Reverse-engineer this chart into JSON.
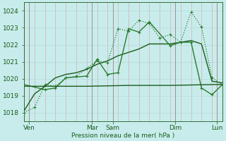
{
  "bg_color": "#c8ecec",
  "grid_color_minor_v": "#d4a0a0",
  "grid_color_major_v": "#a08080",
  "grid_color_h": "#b8d8d8",
  "line_color_dark": "#1a5c1a",
  "line_color_light": "#2d7a2d",
  "xlabel": "Pression niveau de la mer( hPa )",
  "ylim": [
    1017.5,
    1024.5
  ],
  "yticks": [
    1018,
    1019,
    1020,
    1021,
    1022,
    1023,
    1024
  ],
  "xlim": [
    0,
    19
  ],
  "day_labels": [
    "Ven",
    "Mar",
    "Sam",
    "Dim",
    "Lun"
  ],
  "day_positions": [
    0.5,
    6.5,
    8.5,
    14.5,
    18.5
  ],
  "major_vlines": [
    0.5,
    6.5,
    8.5,
    14.5,
    18.5
  ],
  "series1_x": [
    0,
    1,
    2,
    3,
    4,
    5,
    6,
    7,
    8,
    9,
    10,
    11,
    12,
    13,
    14,
    15,
    16,
    17,
    18,
    19
  ],
  "series1_y": [
    1018.0,
    1018.3,
    1019.65,
    1019.55,
    1020.05,
    1020.15,
    1020.6,
    1021.05,
    1020.95,
    1022.95,
    1022.8,
    1023.45,
    1023.25,
    1022.4,
    1022.6,
    1022.15,
    1023.95,
    1023.05,
    1020.05,
    1019.65
  ],
  "series2_x": [
    0,
    1,
    2,
    3,
    4,
    5,
    6,
    7,
    8,
    9,
    10,
    11,
    12,
    13,
    14,
    15,
    16,
    17,
    18,
    19
  ],
  "series2_y": [
    1018.1,
    1019.1,
    1019.55,
    1020.05,
    1020.25,
    1020.35,
    1020.55,
    1020.85,
    1021.05,
    1021.35,
    1021.55,
    1021.75,
    1022.05,
    1022.05,
    1022.05,
    1022.15,
    1022.25,
    1022.05,
    1019.85,
    1019.75
  ],
  "series3_x": [
    0,
    2,
    3,
    4,
    6,
    7,
    8,
    9,
    10,
    11,
    12,
    14,
    15,
    16,
    17,
    18,
    19
  ],
  "series3_y": [
    1019.65,
    1019.35,
    1019.45,
    1020.05,
    1020.15,
    1021.15,
    1020.25,
    1020.35,
    1022.95,
    1022.75,
    1023.35,
    1021.95,
    1022.15,
    1022.15,
    1019.45,
    1019.05,
    1019.65
  ],
  "series4_x": [
    0,
    6,
    10,
    14,
    18,
    19
  ],
  "series4_y": [
    1019.55,
    1019.55,
    1019.6,
    1019.6,
    1019.65,
    1019.65
  ]
}
